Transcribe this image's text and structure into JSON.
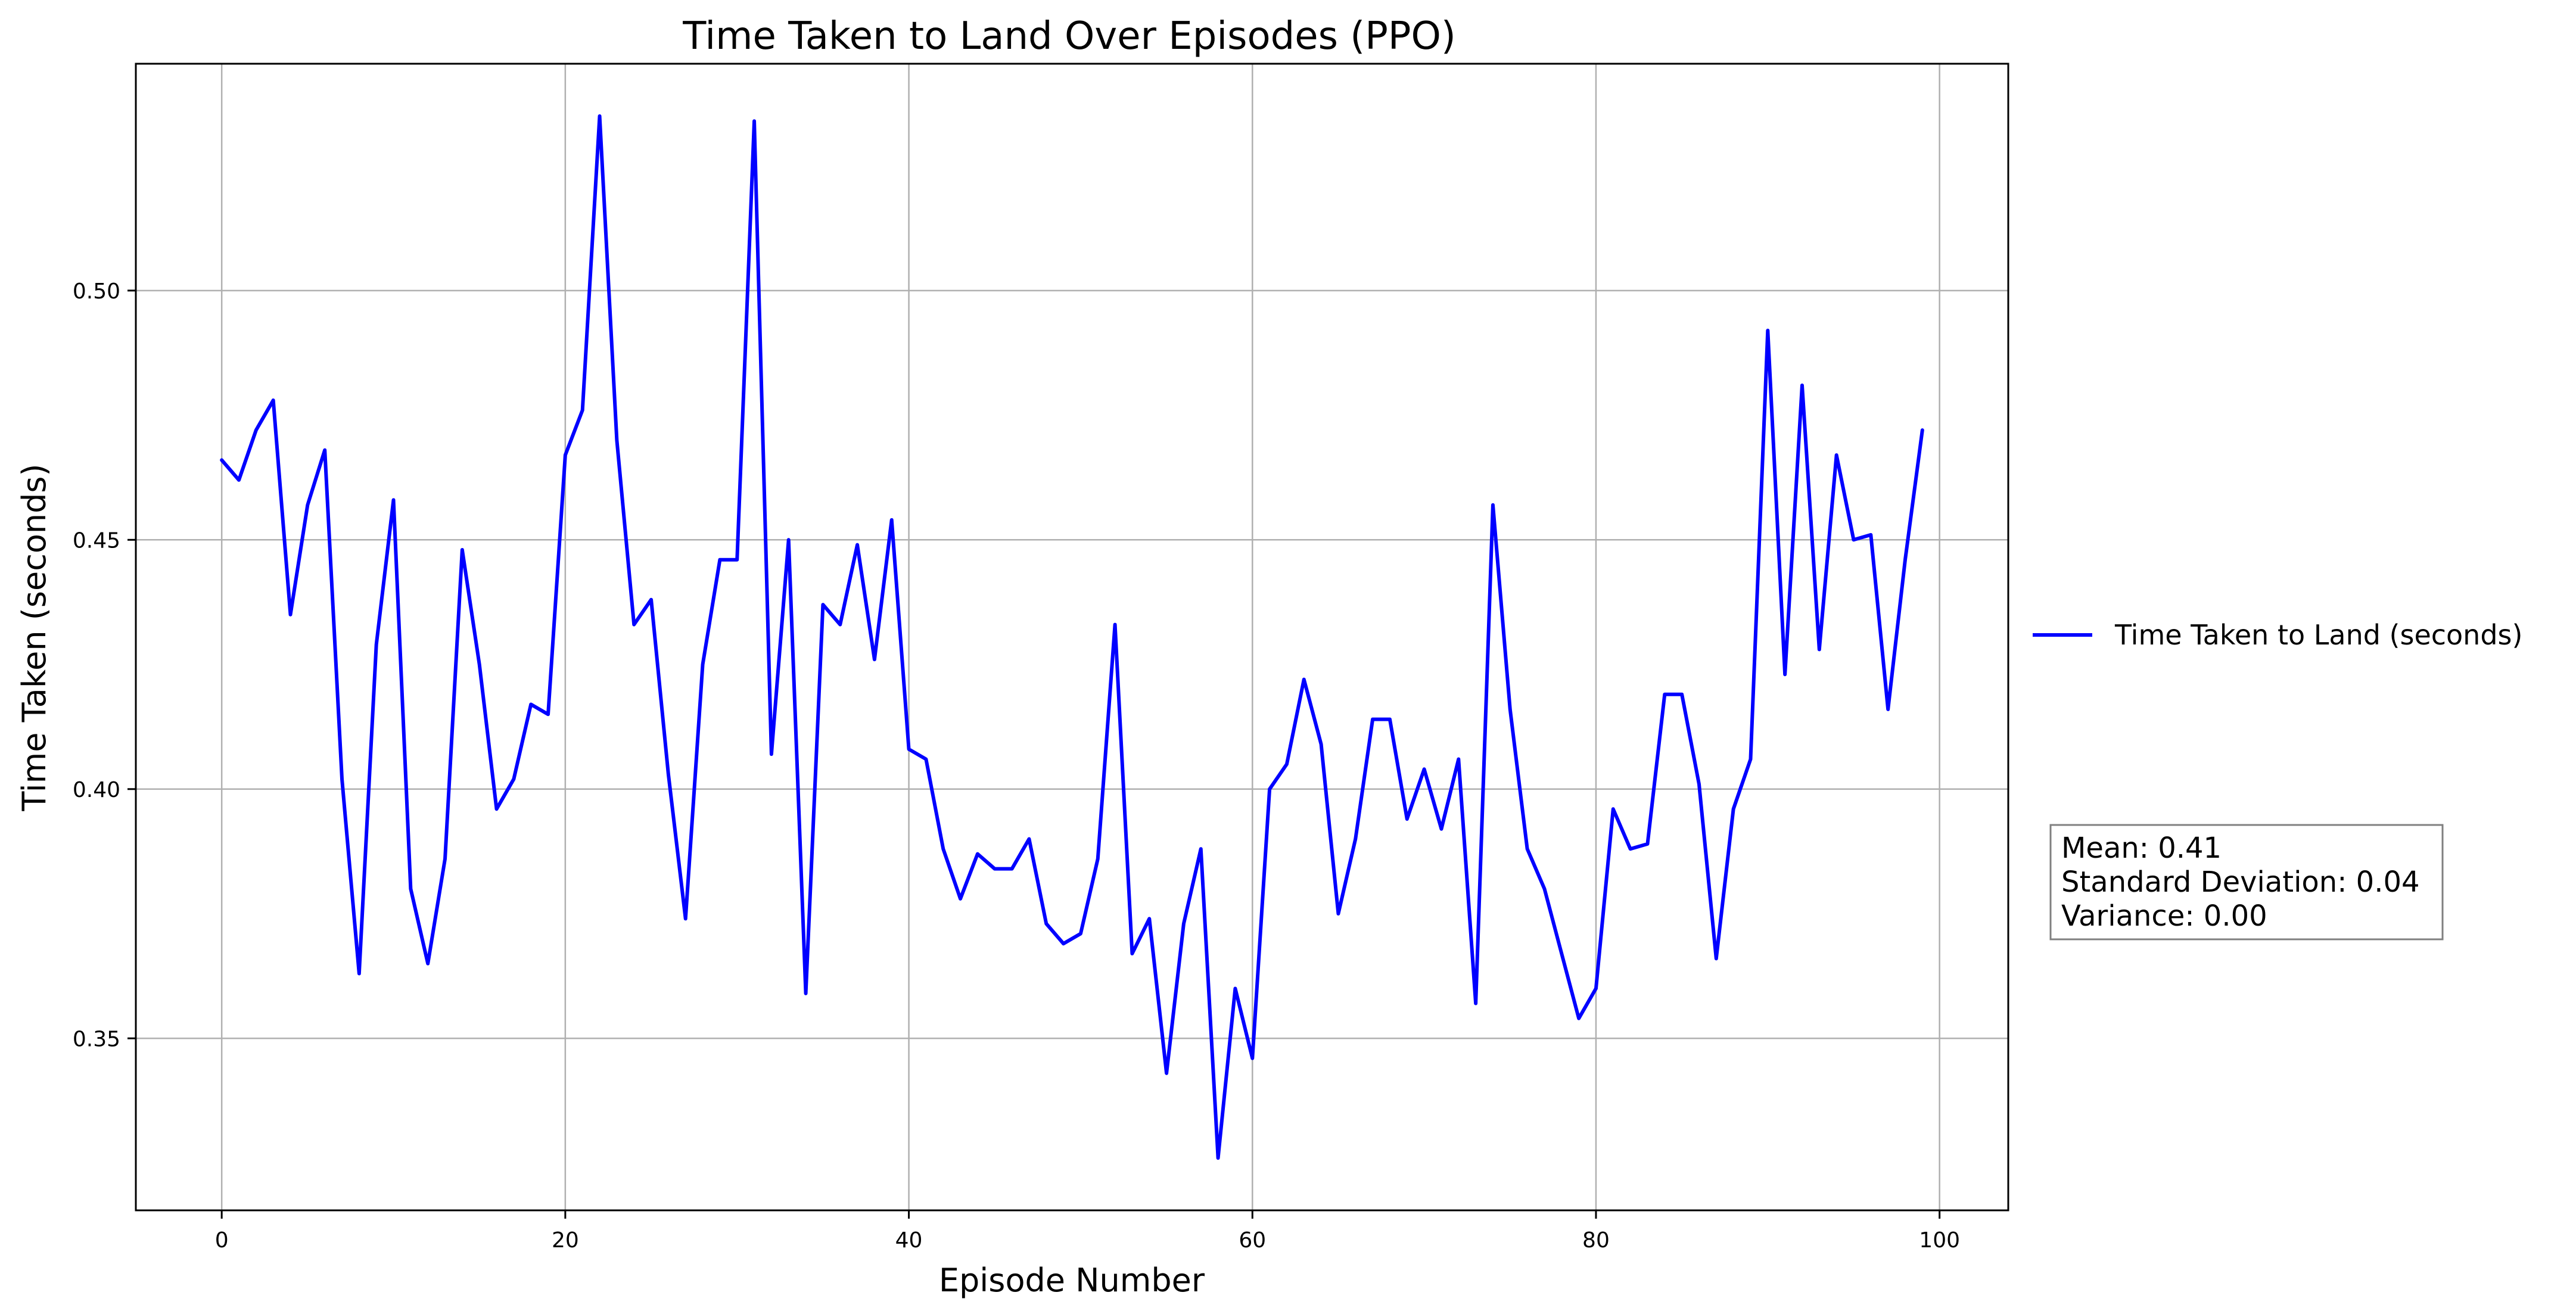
{
  "chart_data": {
    "type": "line",
    "title": "Time Taken to Land Over Episodes (PPO)",
    "xlabel": "Episode Number",
    "ylabel": "Time Taken (seconds)",
    "xlim": [
      -5,
      104
    ],
    "ylim": [
      0.3155,
      0.5455
    ],
    "xticks": [
      0,
      20,
      40,
      60,
      80,
      100
    ],
    "xtick_labels": [
      "0",
      "20",
      "40",
      "60",
      "80",
      "100"
    ],
    "yticks": [
      0.35,
      0.4,
      0.45,
      0.5
    ],
    "ytick_labels": [
      "0.35",
      "0.40",
      "0.45",
      "0.50"
    ],
    "grid": true,
    "legend_position": "right, outside plot",
    "series": [
      {
        "name": "Time Taken to Land (seconds)",
        "color": "#0000ff",
        "x": [
          0,
          1,
          2,
          3,
          4,
          5,
          6,
          7,
          8,
          9,
          10,
          11,
          12,
          13,
          14,
          15,
          16,
          17,
          18,
          19,
          20,
          21,
          22,
          23,
          24,
          25,
          26,
          27,
          28,
          29,
          30,
          31,
          32,
          33,
          34,
          35,
          36,
          37,
          38,
          39,
          40,
          41,
          42,
          43,
          44,
          45,
          46,
          47,
          48,
          49,
          50,
          51,
          52,
          53,
          54,
          55,
          56,
          57,
          58,
          59,
          60,
          61,
          62,
          63,
          64,
          65,
          66,
          67,
          68,
          69,
          70,
          71,
          72,
          73,
          74,
          75,
          76,
          77,
          78,
          79,
          80,
          81,
          82,
          83,
          84,
          85,
          86,
          87,
          88,
          89,
          90,
          91,
          92,
          93,
          94,
          95,
          96,
          97,
          98,
          99
        ],
        "values": [
          0.466,
          0.462,
          0.472,
          0.478,
          0.435,
          0.457,
          0.468,
          0.402,
          0.363,
          0.429,
          0.458,
          0.38,
          0.365,
          0.386,
          0.448,
          0.425,
          0.396,
          0.402,
          0.417,
          0.415,
          0.467,
          0.476,
          0.535,
          0.47,
          0.433,
          0.438,
          0.403,
          0.374,
          0.425,
          0.446,
          0.446,
          0.534,
          0.407,
          0.45,
          0.359,
          0.437,
          0.433,
          0.449,
          0.426,
          0.454,
          0.408,
          0.406,
          0.388,
          0.378,
          0.387,
          0.384,
          0.384,
          0.39,
          0.373,
          0.369,
          0.371,
          0.386,
          0.433,
          0.367,
          0.374,
          0.343,
          0.373,
          0.388,
          0.326,
          0.36,
          0.346,
          0.4,
          0.405,
          0.422,
          0.409,
          0.375,
          0.39,
          0.414,
          0.414,
          0.394,
          0.404,
          0.392,
          0.406,
          0.357,
          0.457,
          0.416,
          0.388,
          0.38,
          0.367,
          0.354,
          0.36,
          0.396,
          0.388,
          0.389,
          0.419,
          0.419,
          0.401,
          0.366,
          0.396,
          0.406,
          0.492,
          0.423,
          0.481,
          0.428,
          0.467,
          0.45,
          0.451,
          0.416,
          0.446,
          0.472
        ]
      }
    ],
    "annotation": {
      "lines": [
        "Mean: 0.41",
        "Standard Deviation: 0.04",
        "Variance: 0.00"
      ]
    }
  }
}
